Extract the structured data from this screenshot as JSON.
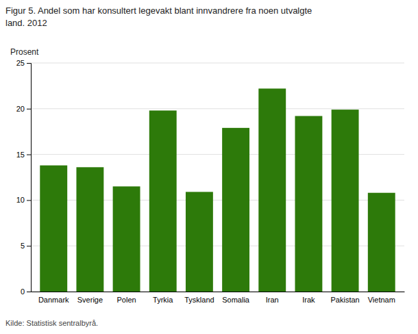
{
  "chart_data": {
    "type": "bar",
    "title": [
      "Figur 5. Andel som har konsultert legevakt blant innvandrere fra noen utvalgte",
      "land. 2012"
    ],
    "y_label": "Prosent",
    "source": "Kilde: Statistisk sentralbyrå.",
    "categories": [
      "Danmark",
      "Sverige",
      "Polen",
      "Tyrkia",
      "Tyskland",
      "Somalia",
      "Iran",
      "Irak",
      "Pakistan",
      "Vietnam"
    ],
    "values": [
      13.8,
      13.6,
      11.5,
      19.8,
      10.9,
      17.9,
      22.2,
      19.2,
      19.9,
      10.8
    ],
    "color": "#2d7a0a",
    "ylim": [
      0,
      25
    ],
    "yticks": [
      0,
      5,
      10,
      15,
      20,
      25
    ],
    "grid": true
  }
}
